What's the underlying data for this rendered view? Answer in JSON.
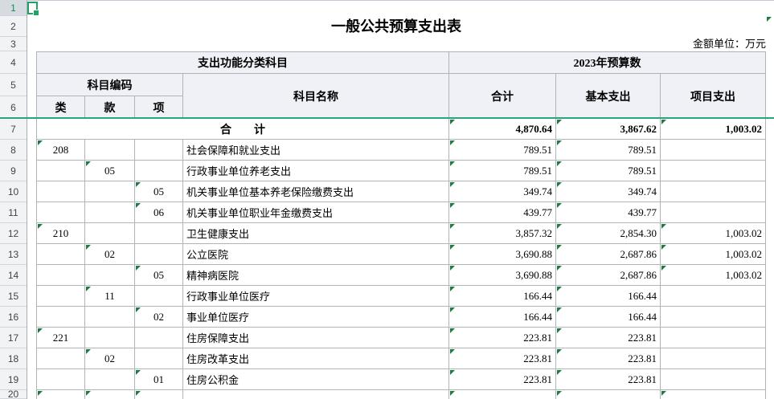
{
  "title": "一般公共预算支出表",
  "unit_note": "金额单位：万元",
  "colors": {
    "accent_green": "#21a366",
    "freeze_line": "#2aa47c",
    "error_flag": "#1e7b43",
    "header_fill": "#eff1f6",
    "gridline": "#b0b3b8"
  },
  "header": {
    "func_group": "支出功能分类科目",
    "budget_group": "2023年预算数",
    "code_group": "科目编码",
    "name": "科目名称",
    "lei": "类",
    "kuan": "款",
    "xiang": "项",
    "total": "合计",
    "basic": "基本支出",
    "project": "项目支出"
  },
  "gutter_rows": [
    "1",
    "2",
    "3",
    "4",
    "5",
    "6",
    "7",
    "8",
    "9",
    "10",
    "11",
    "12",
    "13",
    "14",
    "15",
    "16",
    "17",
    "18",
    "19",
    "20"
  ],
  "rows": [
    {
      "row": "7",
      "merged_label": "合　　计",
      "lei": "",
      "kuan": "",
      "xiang": "",
      "name": "",
      "total": "4,870.64",
      "basic": "3,867.62",
      "project": "1,003.02",
      "bold": true,
      "triangles": [
        "total",
        "basic",
        "project"
      ]
    },
    {
      "row": "8",
      "lei": "208",
      "kuan": "",
      "xiang": "",
      "name": "社会保障和就业支出",
      "total": "789.51",
      "basic": "789.51",
      "project": "",
      "triangles": [
        "lei",
        "total",
        "basic"
      ]
    },
    {
      "row": "9",
      "lei": "",
      "kuan": "05",
      "xiang": "",
      "name": "行政事业单位养老支出",
      "total": "789.51",
      "basic": "789.51",
      "project": "",
      "triangles": [
        "kuan",
        "total",
        "basic"
      ]
    },
    {
      "row": "10",
      "lei": "",
      "kuan": "",
      "xiang": "05",
      "name": "机关事业单位基本养老保险缴费支出",
      "total": "349.74",
      "basic": "349.74",
      "project": "",
      "triangles": [
        "xiang",
        "total",
        "basic"
      ]
    },
    {
      "row": "11",
      "lei": "",
      "kuan": "",
      "xiang": "06",
      "name": "机关事业单位职业年金缴费支出",
      "total": "439.77",
      "basic": "439.77",
      "project": "",
      "triangles": [
        "xiang",
        "total",
        "basic"
      ]
    },
    {
      "row": "12",
      "lei": "210",
      "kuan": "",
      "xiang": "",
      "name": "卫生健康支出",
      "total": "3,857.32",
      "basic": "2,854.30",
      "project": "1,003.02",
      "triangles": [
        "lei",
        "total",
        "basic",
        "project"
      ]
    },
    {
      "row": "13",
      "lei": "",
      "kuan": "02",
      "xiang": "",
      "name": "公立医院",
      "total": "3,690.88",
      "basic": "2,687.86",
      "project": "1,003.02",
      "triangles": [
        "kuan",
        "total",
        "basic",
        "project"
      ]
    },
    {
      "row": "14",
      "lei": "",
      "kuan": "",
      "xiang": "05",
      "name": "精神病医院",
      "total": "3,690.88",
      "basic": "2,687.86",
      "project": "1,003.02",
      "triangles": [
        "xiang",
        "total",
        "basic",
        "project"
      ]
    },
    {
      "row": "15",
      "lei": "",
      "kuan": "11",
      "xiang": "",
      "name": "行政事业单位医疗",
      "total": "166.44",
      "basic": "166.44",
      "project": "",
      "triangles": [
        "kuan",
        "total",
        "basic"
      ]
    },
    {
      "row": "16",
      "lei": "",
      "kuan": "",
      "xiang": "02",
      "name": "事业单位医疗",
      "total": "166.44",
      "basic": "166.44",
      "project": "",
      "triangles": [
        "xiang",
        "total",
        "basic"
      ]
    },
    {
      "row": "17",
      "lei": "221",
      "kuan": "",
      "xiang": "",
      "name": "住房保障支出",
      "total": "223.81",
      "basic": "223.81",
      "project": "",
      "triangles": [
        "lei",
        "total",
        "basic"
      ]
    },
    {
      "row": "18",
      "lei": "",
      "kuan": "02",
      "xiang": "",
      "name": "住房改革支出",
      "total": "223.81",
      "basic": "223.81",
      "project": "",
      "triangles": [
        "kuan",
        "total",
        "basic"
      ]
    },
    {
      "row": "19",
      "lei": "",
      "kuan": "",
      "xiang": "01",
      "name": "住房公积金",
      "total": "223.81",
      "basic": "223.81",
      "project": "",
      "triangles": [
        "xiang",
        "total",
        "basic"
      ]
    },
    {
      "row": "20",
      "lei": "",
      "kuan": "",
      "xiang": "",
      "name": "",
      "total": "",
      "basic": "",
      "project": "",
      "triangles": [
        "lei",
        "kuan",
        "xiang",
        "total",
        "basic",
        "project"
      ]
    }
  ]
}
